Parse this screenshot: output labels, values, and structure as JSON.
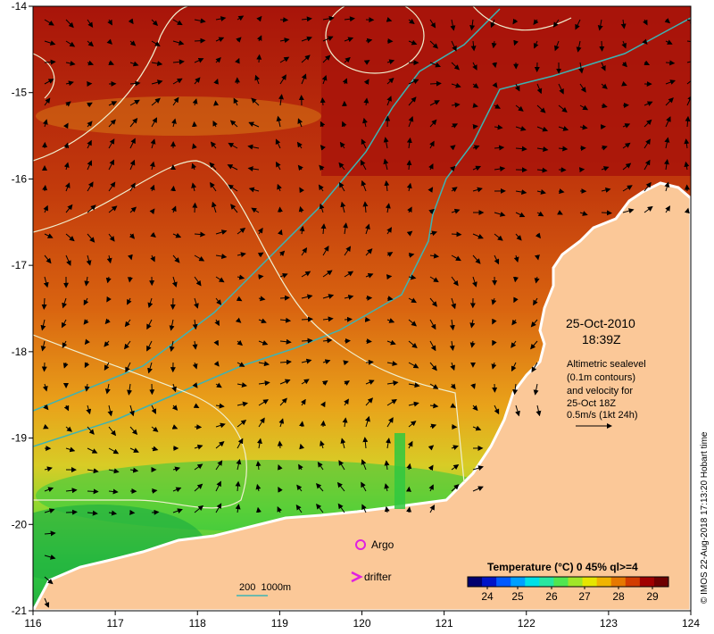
{
  "map": {
    "lon_ticks": [
      "116",
      "117",
      "118",
      "119",
      "120",
      "121",
      "122",
      "123",
      "124"
    ],
    "lat_ticks": [
      "-14",
      "-15",
      "-16",
      "-17",
      "-18",
      "-19",
      "-20",
      "-21"
    ],
    "date": "25-Oct-2010",
    "time": "18:39Z",
    "info_lines": [
      "Altimetric sealevel",
      "(0.1m contours)",
      "and velocity for",
      "25-Oct 18Z",
      "0.5m/s (1kt 24h)"
    ],
    "argo_label": "Argo",
    "drifter_label": "drifter",
    "depth_legend": "200  1000m",
    "colorbar_title": "Temperature (°C) 0 45% ql>=4",
    "colorbar_ticks": [
      "24",
      "25",
      "26",
      "27",
      "28",
      "29"
    ],
    "credit": "© IMOS 22-Aug-2018 17:13:20 Hobart time",
    "colors": {
      "land": "#fbc898",
      "sea_hot": "#a8140a",
      "sea_warm": "#d96410",
      "sea_mid": "#e9a21a",
      "sea_cool": "#c8dc28",
      "sea_cold": "#30c840",
      "isobath": "#3cb4b4",
      "contour": "#f0f0d0",
      "argo": "#e020e0"
    },
    "colorbar_colors": [
      "#00006e",
      "#0014c8",
      "#005aff",
      "#00a0ff",
      "#00e0e6",
      "#28e6a0",
      "#50e650",
      "#a0e628",
      "#e6e600",
      "#f0b400",
      "#e67800",
      "#d23c00",
      "#a00000",
      "#6e0000"
    ]
  }
}
